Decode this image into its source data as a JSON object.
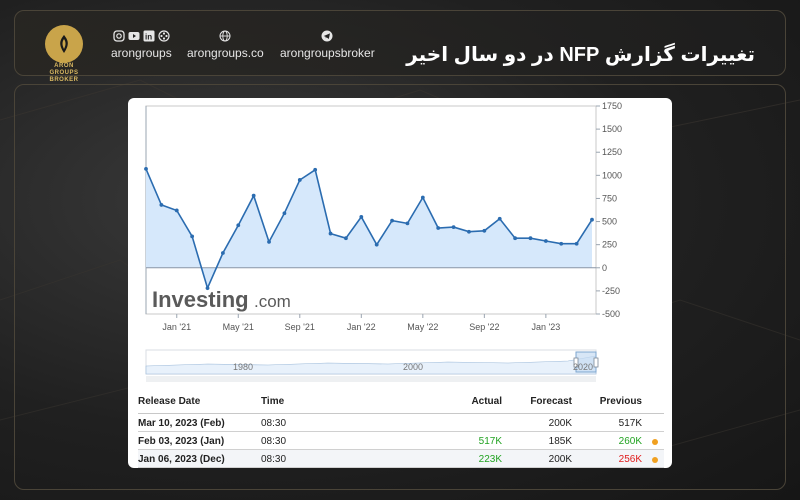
{
  "header": {
    "title": "تغییرات گزارش NFP در دو سال اخیر",
    "logo_text_line1": "ARON",
    "logo_text_line2": "GROUPS",
    "logo_text_line3": "BROKER",
    "social": [
      {
        "label": "arongroups",
        "icons": [
          "instagram-icon",
          "youtube-icon",
          "linkedin-icon",
          "aparat-icon"
        ]
      },
      {
        "label": "arongroups.co",
        "icons": [
          "globe-icon"
        ]
      },
      {
        "label": "arongroupsbroker",
        "icons": [
          "telegram-icon"
        ]
      }
    ]
  },
  "colors": {
    "accent_gold": "#c9a44a",
    "line": "#2b6cb0",
    "area": "#d6e8fb",
    "positive": "#22a322",
    "negative": "#e01c1c",
    "marker": "#f0a020"
  },
  "watermark": {
    "brand": "Investing",
    "suffix": ".com"
  },
  "chart_data": {
    "type": "area",
    "title": "",
    "xlabel": "",
    "ylabel": "",
    "ylim": [
      -500,
      1750
    ],
    "yticks": [
      1750,
      1500,
      1250,
      1000,
      750,
      500,
      250,
      0,
      -250,
      -500
    ],
    "x_ticks": [
      "Jan '21",
      "May '21",
      "Sep '21",
      "Jan '22",
      "May '22",
      "Sep '22",
      "Jan '23"
    ],
    "y_axis_position": "right",
    "grid": false,
    "legend": "none",
    "series": [
      {
        "values": [
          1070,
          680,
          620,
          340,
          -220,
          160,
          460,
          780,
          280,
          590,
          950,
          1060,
          370,
          320,
          550,
          250,
          510,
          480,
          760,
          430,
          440,
          390,
          400,
          530,
          320,
          320,
          290,
          260,
          260,
          520
        ]
      }
    ],
    "navigator": {
      "ticks": [
        "1980",
        "2000",
        "2020"
      ]
    }
  },
  "table": {
    "headers": {
      "date": "Release Date",
      "time": "Time",
      "actual": "Actual",
      "forecast": "Forecast",
      "previous": "Previous"
    },
    "rows": [
      {
        "date": "Mar 10, 2023 (Feb)",
        "time": "08:30",
        "actual": "",
        "forecast": "200K",
        "previous": "517K",
        "previous_status": "neutral",
        "marker": false
      },
      {
        "date": "Feb 03, 2023 (Jan)",
        "time": "08:30",
        "actual": "517K",
        "actual_status": "positive",
        "forecast": "185K",
        "previous": "260K",
        "previous_status": "positive",
        "marker": true
      },
      {
        "date": "Jan 06, 2023 (Dec)",
        "time": "08:30",
        "actual": "223K",
        "actual_status": "positive",
        "forecast": "200K",
        "previous": "256K",
        "previous_status": "negative",
        "marker": true
      }
    ]
  }
}
